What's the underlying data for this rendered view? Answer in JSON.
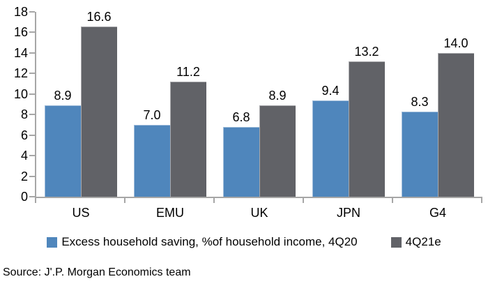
{
  "chart_data": {
    "type": "bar",
    "categories": [
      "US",
      "EMU",
      "UK",
      "JPN",
      "G4"
    ],
    "series": [
      {
        "name": "Excess household saving, %of household income, 4Q20",
        "slug": "4q20",
        "color": "#4f86bc",
        "values": [
          8.9,
          7.0,
          6.8,
          9.4,
          8.3
        ]
      },
      {
        "name": "4Q21e",
        "slug": "4q21e",
        "color": "#616267",
        "values": [
          16.6,
          11.2,
          8.9,
          13.2,
          14.0
        ]
      }
    ],
    "title": "",
    "xlabel": "",
    "ylabel": "",
    "ylim": [
      0,
      18
    ],
    "yticks": [
      0,
      2,
      4,
      6,
      8,
      10,
      12,
      14,
      16,
      18
    ],
    "grid": false,
    "legend_position": "bottom",
    "data_labels": true,
    "value_decimals": 1
  },
  "colors": {
    "axis": "#a6a6a6",
    "text": "#000000"
  },
  "footer": {
    "source": "Source: J'.P. Morgan Economics team"
  }
}
